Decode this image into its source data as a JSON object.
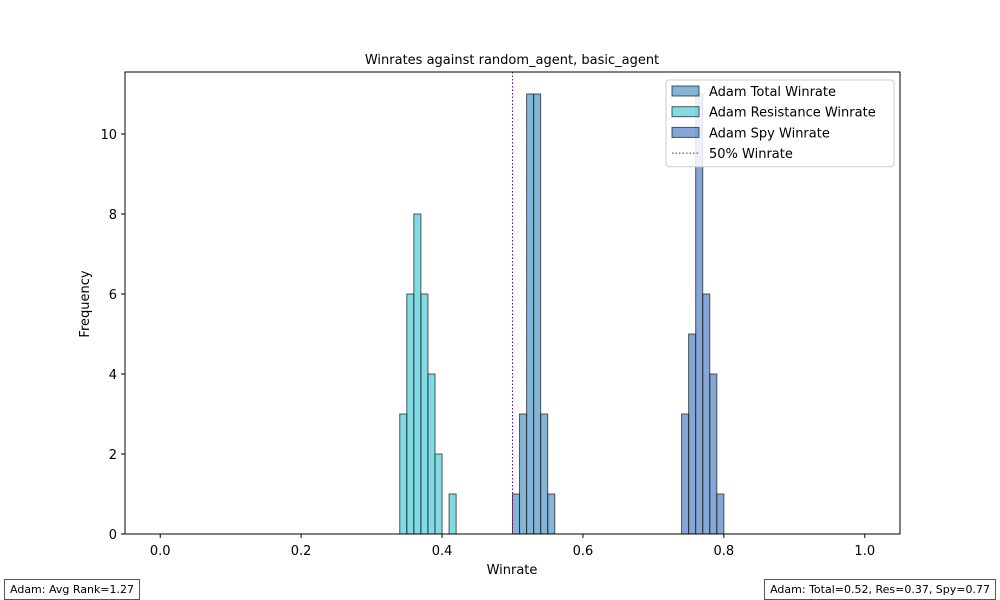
{
  "chart_data": {
    "type": "histogram",
    "title": "Winrates against random_agent, basic_agent",
    "xlabel": "Winrate",
    "ylabel": "Frequency",
    "xlim": [
      -0.05,
      1.05
    ],
    "ylim": [
      0,
      11.55
    ],
    "xticks": [
      "0.0",
      "0.2",
      "0.4",
      "0.6",
      "0.8",
      "1.0"
    ],
    "yticks": [
      "0",
      "2",
      "4",
      "6",
      "8",
      "10"
    ],
    "bin_width": 0.01,
    "bin_range": [
      0,
      1
    ],
    "reference_line": {
      "x": 0.5,
      "label": "50% Winrate",
      "color": "#800080",
      "style": "dotted"
    },
    "legend_position": "top-right",
    "series": [
      {
        "name": "Adam Total Winrate",
        "color": "#1f77b4",
        "bins": [
          {
            "x": 0.5,
            "count": 1
          },
          {
            "x": 0.51,
            "count": 3
          },
          {
            "x": 0.52,
            "count": 11
          },
          {
            "x": 0.53,
            "count": 11
          },
          {
            "x": 0.54,
            "count": 3
          },
          {
            "x": 0.55,
            "count": 1
          }
        ]
      },
      {
        "name": "Adam Resistance Winrate",
        "color": "#17becf",
        "bins": [
          {
            "x": 0.34,
            "count": 3
          },
          {
            "x": 0.35,
            "count": 6
          },
          {
            "x": 0.36,
            "count": 8
          },
          {
            "x": 0.37,
            "count": 6
          },
          {
            "x": 0.38,
            "count": 4
          },
          {
            "x": 0.39,
            "count": 2
          },
          {
            "x": 0.41,
            "count": 1
          }
        ]
      },
      {
        "name": "Adam Spy Winrate",
        "color": "#1f5fb4",
        "bins": [
          {
            "x": 0.74,
            "count": 3
          },
          {
            "x": 0.75,
            "count": 5
          },
          {
            "x": 0.76,
            "count": 11
          },
          {
            "x": 0.77,
            "count": 6
          },
          {
            "x": 0.78,
            "count": 4
          },
          {
            "x": 0.79,
            "count": 1
          }
        ]
      }
    ]
  },
  "footnotes": {
    "left": "Adam: Avg Rank=1.27",
    "right": "Adam: Total=0.52, Res=0.37, Spy=0.77"
  }
}
